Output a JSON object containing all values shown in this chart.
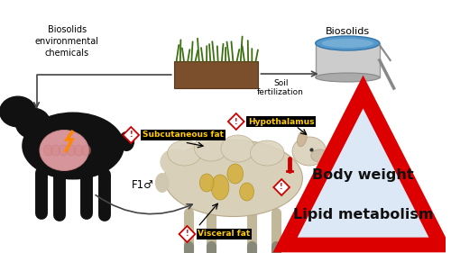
{
  "bg_color": "#ffffff",
  "biosolids_label": "Biosolids",
  "biosolids_env_label": "Biosolids\nenvironmental\nchemicals",
  "soil_fert_label": "Soil\nfertilization",
  "f1_label": "F1♂",
  "warning_labels": [
    "Hypothalamus",
    "Subcutaneous fat",
    "Visceral fat"
  ],
  "warning_label_bg": "#000000",
  "warning_label_fg": "#ffcc00",
  "triangle_color": "#dd0000",
  "triangle_fill": "#dce8f5",
  "triangle_text1": "Body weight",
  "triangle_text2": "Lipid metabolism",
  "triangle_text_color": "#111111",
  "arrow_color": "#444444",
  "exclaim_color": "#cc0000",
  "grass_color": "#3a7010",
  "soil_color": "#7B4E2C",
  "tank_outer": "#bbbbbb",
  "tank_water": "#5599cc",
  "black_sheep_body": "#111111",
  "organ_color": "#e8a0a8",
  "bolt_color": "#ff8800",
  "white_sheep_body": "#e8e0cc",
  "visceral_color": "#d4b040"
}
